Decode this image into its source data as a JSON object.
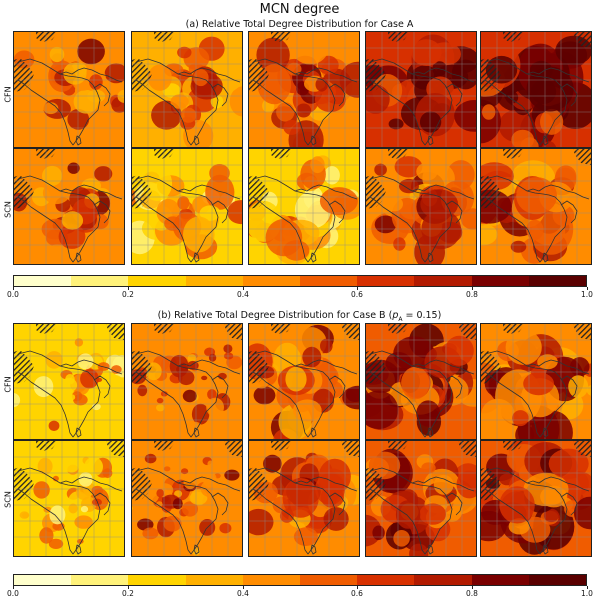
{
  "figure": {
    "title": "MCN degree",
    "section_a_title": "(a) Relative Total Degree Distribution for Case A",
    "section_b_title": "(b) Relative Total Degree Distribution for Case B (p₁ = 0.15)"
  },
  "colors": {
    "scale": [
      "#ffffcc",
      "#fff27a",
      "#ffd400",
      "#ffb000",
      "#ff8c00",
      "#f05c00",
      "#d73000",
      "#b21a00",
      "#7a0000",
      "#5a0000"
    ],
    "coastline": "#333333",
    "grid": "#8a8a8a",
    "hatch": "#222222"
  },
  "chart_data": {
    "type": "heatmap",
    "title": "MCN degree",
    "sections": [
      {
        "name": "(a) Relative Total Degree Distribution for Case A",
        "rows": [
          "CFN",
          "SCN"
        ],
        "columns": 5,
        "panel_mean_intensity": [
          [
            0.52,
            0.45,
            0.55,
            0.7,
            0.78
          ],
          [
            0.5,
            0.3,
            0.35,
            0.55,
            0.55
          ]
        ]
      },
      {
        "name": "(b) Relative Total Degree Distribution for Case B (p₁ = 0.15)",
        "rows": [
          "CFN",
          "SCN"
        ],
        "columns": 5,
        "panel_mean_intensity": [
          [
            0.35,
            0.55,
            0.55,
            0.65,
            0.55
          ],
          [
            0.35,
            0.5,
            0.55,
            0.6,
            0.65
          ]
        ]
      }
    ],
    "colorbar": {
      "min": 0.0,
      "max": 1.0,
      "levels": 10,
      "tick_labels": [
        "0.0",
        "0.2",
        "0.4",
        "0.6",
        "0.8",
        "1.0"
      ]
    }
  }
}
